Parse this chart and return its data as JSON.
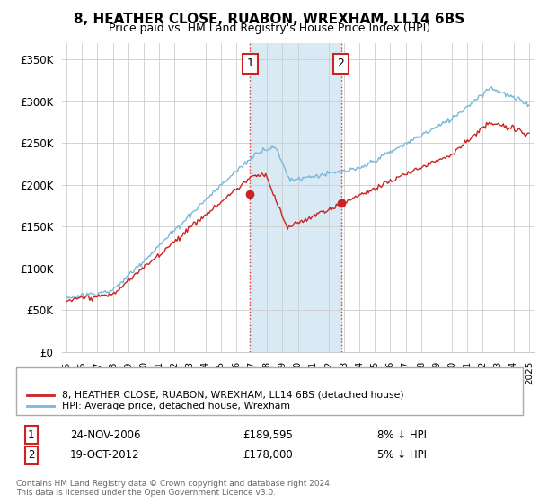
{
  "title": "8, HEATHER CLOSE, RUABON, WREXHAM, LL14 6BS",
  "subtitle": "Price paid vs. HM Land Registry's House Price Index (HPI)",
  "ylabel_ticks": [
    "£0",
    "£50K",
    "£100K",
    "£150K",
    "£200K",
    "£250K",
    "£300K",
    "£350K"
  ],
  "ytick_values": [
    0,
    50000,
    100000,
    150000,
    200000,
    250000,
    300000,
    350000
  ],
  "ylim": [
    0,
    370000
  ],
  "xlim_start": 1994.7,
  "xlim_end": 2025.3,
  "purchase1_x": 2006.9,
  "purchase1_y": 189595,
  "purchase2_x": 2012.8,
  "purchase2_y": 178000,
  "legend_line1": "8, HEATHER CLOSE, RUABON, WREXHAM, LL14 6BS (detached house)",
  "legend_line2": "HPI: Average price, detached house, Wrexham",
  "table_row1": [
    "1",
    "24-NOV-2006",
    "£189,595",
    "8% ↓ HPI"
  ],
  "table_row2": [
    "2",
    "19-OCT-2012",
    "£178,000",
    "5% ↓ HPI"
  ],
  "footer": "Contains HM Land Registry data © Crown copyright and database right 2024.\nThis data is licensed under the Open Government Licence v3.0.",
  "hpi_color": "#7ab8d9",
  "price_color": "#cc2222",
  "highlight_color": "#daeaf5",
  "grid_color": "#cccccc",
  "bg_color": "#ffffff",
  "box_edge_color": "#cc2222"
}
